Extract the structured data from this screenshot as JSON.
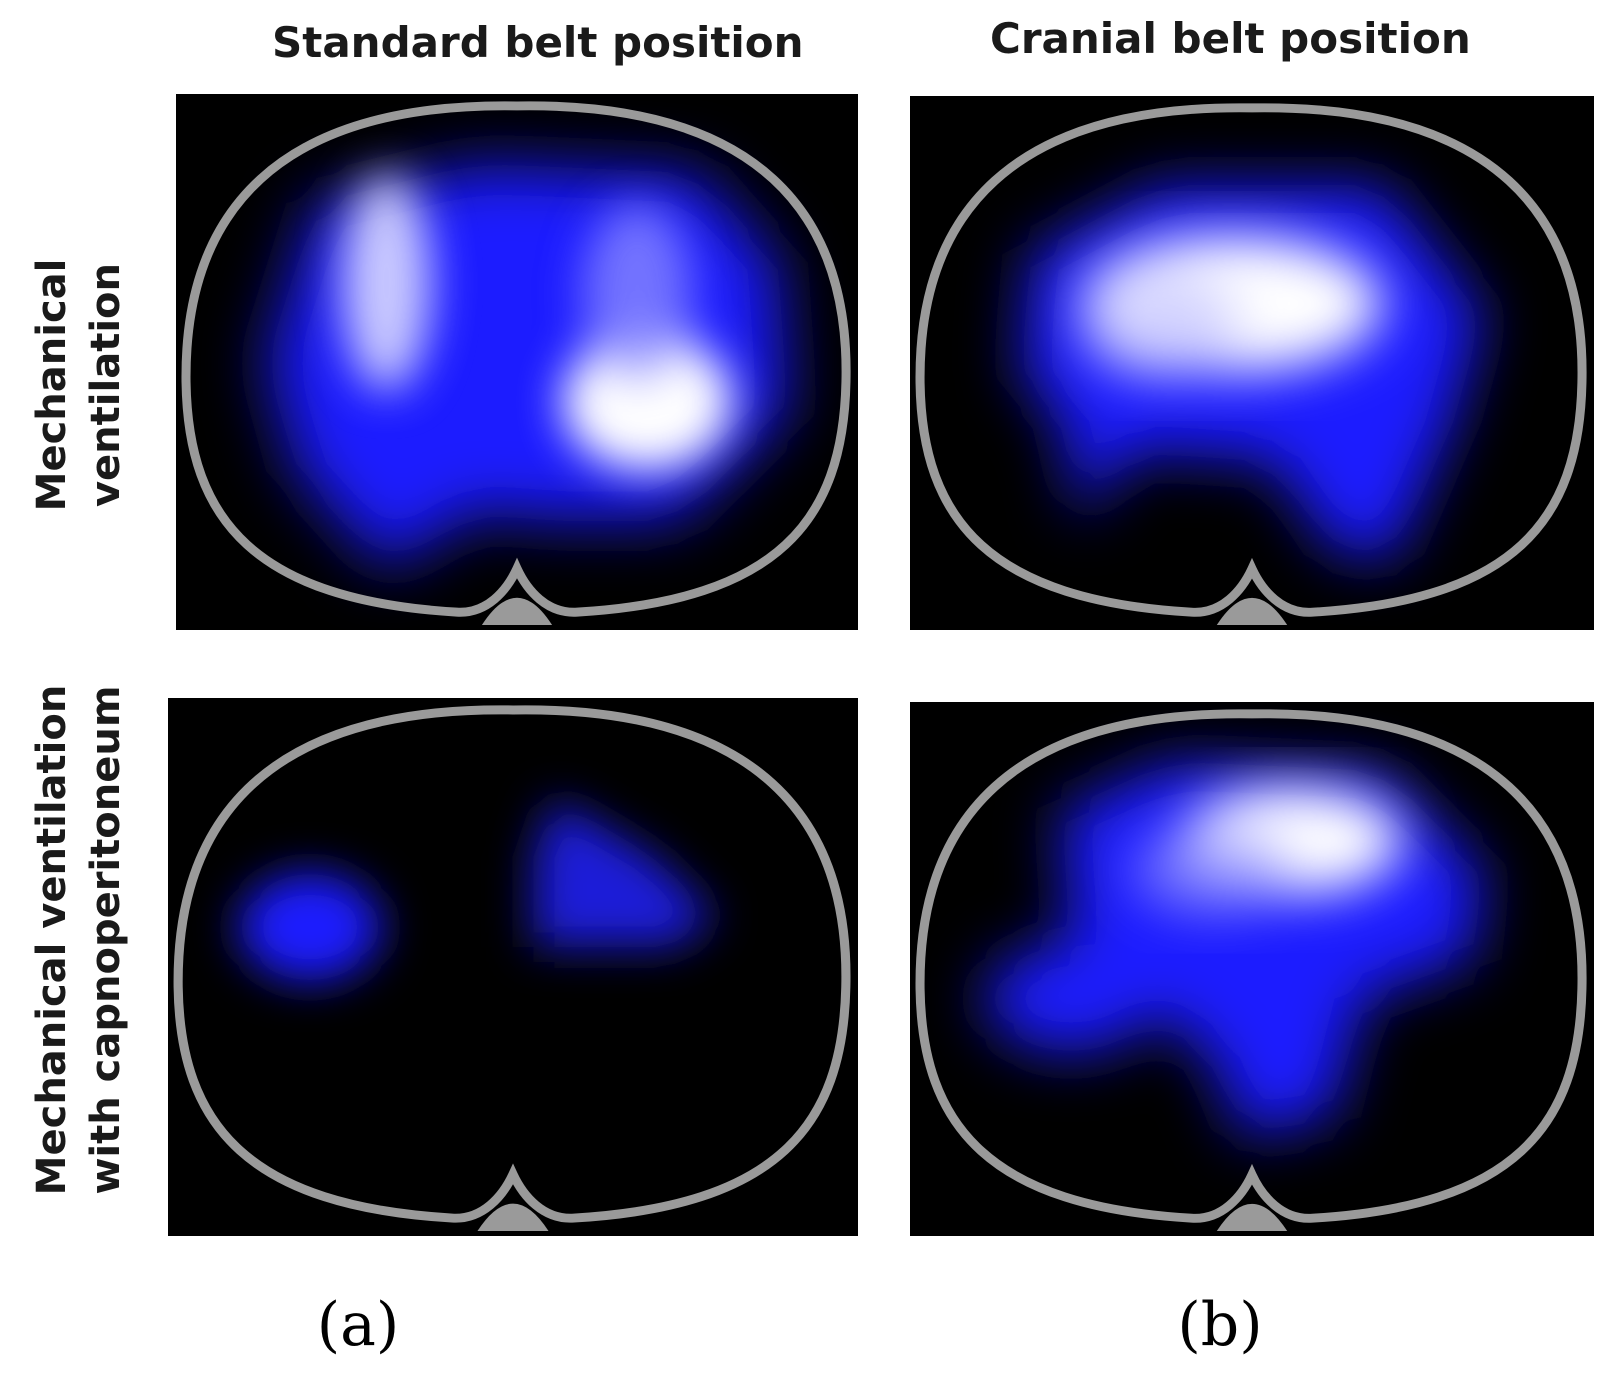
{
  "figure": {
    "columns": [
      {
        "title": "Standard belt position",
        "label": "(a)"
      },
      {
        "title": "Cranial belt position",
        "label": "(b)"
      }
    ],
    "rows": [
      {
        "title_lines": [
          "Mechanical",
          "ventilation"
        ]
      },
      {
        "title_lines": [
          "Mechanical ventilation",
          "with capnoperitoneum"
        ]
      }
    ],
    "colors": {
      "background": "#000000",
      "thorax_outline": "#9a9a9a",
      "ventilation_low": "#1a1aff",
      "ventilation_high": "#ffffff"
    }
  }
}
